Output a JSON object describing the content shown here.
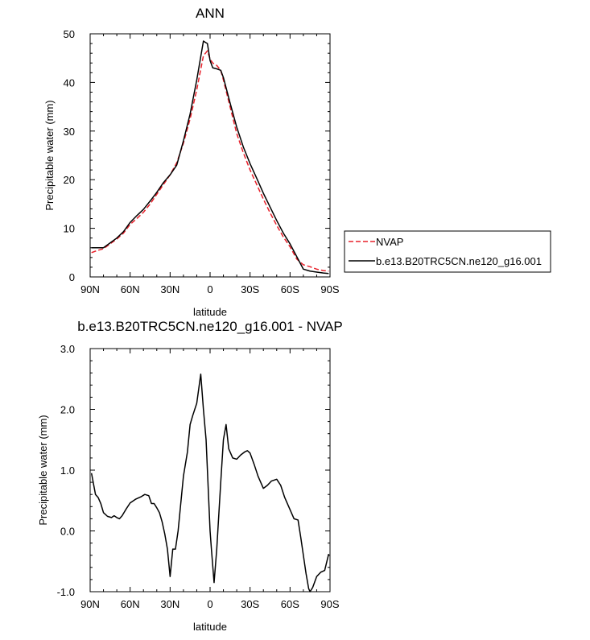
{
  "chart_data": [
    {
      "type": "line",
      "title": "ANN",
      "xlabel": "latitude",
      "ylabel": "Precipitable water (mm)",
      "xlim": [
        90,
        -90
      ],
      "ylim": [
        0,
        50
      ],
      "x_tick_values": [
        90,
        60,
        30,
        0,
        -30,
        -60,
        -90
      ],
      "x_tick_labels": [
        "90N",
        "60N",
        "30N",
        "0",
        "30S",
        "60S",
        "90S"
      ],
      "y_tick_values": [
        0,
        10,
        20,
        30,
        40,
        50
      ],
      "y_tick_labels": [
        "0",
        "10",
        "20",
        "30",
        "40",
        "50"
      ],
      "legend_position": "right",
      "series": [
        {
          "name": "NVAP",
          "color": "#e8202a",
          "style": "dashed",
          "x": [
            89,
            85,
            80,
            75,
            70,
            65,
            60,
            55,
            50,
            45,
            40,
            35,
            30,
            25,
            20,
            15,
            10,
            5,
            2,
            0,
            -2,
            -5,
            -8,
            -10,
            -15,
            -20,
            -25,
            -30,
            -35,
            -40,
            -45,
            -50,
            -55,
            -60,
            -65,
            -70,
            -75,
            -80,
            -85,
            -89
          ],
          "y": [
            5.0,
            5.4,
            5.8,
            6.8,
            7.8,
            9.0,
            10.8,
            12.0,
            13.3,
            15.0,
            17.0,
            19.0,
            21.0,
            23.5,
            27.5,
            32.5,
            38.5,
            45.5,
            46.5,
            44.8,
            44.0,
            43.5,
            42.5,
            40.5,
            35.0,
            29.5,
            25.5,
            22.0,
            19.0,
            16.0,
            13.2,
            10.6,
            8.2,
            6.2,
            3.7,
            2.5,
            2.1,
            1.6,
            1.3,
            1.2
          ]
        },
        {
          "name": "b.e13.B20TRC5CN.ne120_g16.001",
          "color": "#000000",
          "style": "solid",
          "x": [
            89,
            85,
            80,
            75,
            70,
            65,
            60,
            55,
            50,
            45,
            40,
            35,
            30,
            25,
            20,
            15,
            10,
            5,
            2,
            0,
            -2,
            -5,
            -8,
            -10,
            -15,
            -20,
            -25,
            -30,
            -35,
            -40,
            -45,
            -50,
            -55,
            -60,
            -65,
            -70,
            -75,
            -80,
            -85,
            -89
          ],
          "y": [
            6.0,
            6.0,
            6.0,
            7.0,
            8.0,
            9.3,
            11.2,
            12.6,
            13.9,
            15.6,
            17.4,
            19.4,
            21.0,
            23.0,
            28.0,
            33.5,
            40.5,
            48.5,
            48.0,
            44.5,
            43.0,
            42.8,
            42.5,
            41.0,
            35.8,
            30.8,
            26.7,
            23.3,
            20.3,
            17.2,
            14.4,
            11.6,
            9.0,
            6.8,
            4.2,
            1.6,
            1.2,
            1.0,
            0.8,
            0.7
          ]
        }
      ]
    },
    {
      "type": "line",
      "title": "b.e13.B20TRC5CN.ne120_g16.001 - NVAP",
      "xlabel": "latitude",
      "ylabel": "Precipitable water (mm)",
      "xlim": [
        90,
        -90
      ],
      "ylim": [
        -1.0,
        3.0
      ],
      "x_tick_values": [
        90,
        60,
        30,
        0,
        -30,
        -60,
        -90
      ],
      "x_tick_labels": [
        "90N",
        "60N",
        "30N",
        "0",
        "30S",
        "60S",
        "90S"
      ],
      "y_tick_values": [
        -1.0,
        0.0,
        1.0,
        2.0,
        3.0
      ],
      "y_tick_labels": [
        "-1.0",
        "0.0",
        "1.0",
        "2.0",
        "3.0"
      ],
      "series": [
        {
          "color": "#000000",
          "style": "solid",
          "x": [
            89,
            86,
            84,
            82,
            80,
            77,
            74,
            72,
            70,
            68,
            66,
            63,
            60,
            56,
            52,
            49,
            46,
            44,
            42,
            40,
            38,
            36,
            34,
            32,
            30,
            28,
            26,
            24,
            20,
            17,
            15,
            13,
            10,
            7,
            5,
            3,
            0,
            -1,
            -3,
            -5,
            -8,
            -10,
            -12,
            -14,
            -17,
            -20,
            -23,
            -26,
            -28,
            -30,
            -33,
            -36,
            -40,
            -43,
            -46,
            -50,
            -53,
            -56,
            -60,
            -63,
            -66,
            -68,
            -70,
            -72,
            -74,
            -75,
            -77,
            -80,
            -83,
            -86,
            -89
          ],
          "y": [
            0.95,
            0.6,
            0.55,
            0.45,
            0.3,
            0.24,
            0.22,
            0.25,
            0.22,
            0.2,
            0.25,
            0.36,
            0.46,
            0.52,
            0.56,
            0.6,
            0.58,
            0.45,
            0.45,
            0.38,
            0.3,
            0.15,
            -0.05,
            -0.3,
            -0.75,
            -0.3,
            -0.3,
            0.0,
            0.9,
            1.3,
            1.75,
            1.9,
            2.1,
            2.58,
            2.0,
            1.5,
            0.0,
            -0.3,
            -0.85,
            -0.3,
            0.8,
            1.5,
            1.75,
            1.35,
            1.2,
            1.18,
            1.25,
            1.3,
            1.32,
            1.28,
            1.1,
            0.9,
            0.7,
            0.75,
            0.82,
            0.85,
            0.75,
            0.55,
            0.35,
            0.2,
            0.18,
            -0.1,
            -0.4,
            -0.7,
            -0.95,
            -1.0,
            -0.93,
            -0.75,
            -0.68,
            -0.65,
            -0.38
          ]
        }
      ]
    }
  ]
}
